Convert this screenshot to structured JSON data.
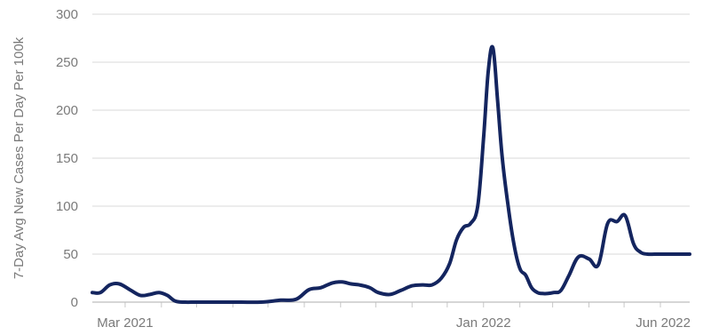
{
  "chart_data": {
    "type": "line",
    "ylabel": "7-Day Avg New Cases Per Day Per 100k",
    "ylim": [
      0,
      300
    ],
    "yticks": [
      0,
      50,
      100,
      150,
      200,
      250,
      300
    ],
    "grid": true,
    "x_tick_labels": [
      {
        "label": "Mar 2021",
        "date": "2021-03-01"
      },
      {
        "label": "Jan 2022",
        "date": "2022-01-01"
      },
      {
        "label": "Jun 2022",
        "date": "2022-06-01"
      }
    ],
    "series": [
      {
        "color": "#14255f",
        "x": [
          "2021-02-01",
          "2021-02-08",
          "2021-02-16",
          "2021-02-24",
          "2021-03-05",
          "2021-03-14",
          "2021-03-22",
          "2021-03-30",
          "2021-04-06",
          "2021-04-13",
          "2021-04-21",
          "2021-04-29",
          "2021-05-06",
          "2021-05-14",
          "2021-05-25",
          "2021-06-08",
          "2021-06-25",
          "2021-07-12",
          "2021-07-25",
          "2021-08-05",
          "2021-08-15",
          "2021-08-25",
          "2021-09-02",
          "2021-09-10",
          "2021-09-17",
          "2021-09-26",
          "2021-10-03",
          "2021-10-13",
          "2021-10-22",
          "2021-11-01",
          "2021-11-10",
          "2021-11-18",
          "2021-11-26",
          "2021-12-03",
          "2021-12-09",
          "2021-12-15",
          "2021-12-21",
          "2021-12-27",
          "2022-01-01",
          "2022-01-05",
          "2022-01-09",
          "2022-01-13",
          "2022-01-17",
          "2022-01-22",
          "2022-01-27",
          "2022-02-01",
          "2022-02-06",
          "2022-02-11",
          "2022-02-16",
          "2022-02-20",
          "2022-02-25",
          "2022-03-02",
          "2022-03-08",
          "2022-03-15",
          "2022-03-23",
          "2022-04-01",
          "2022-04-09",
          "2022-04-17",
          "2022-04-25",
          "2022-05-02",
          "2022-05-09",
          "2022-05-15",
          "2022-05-21",
          "2022-05-27",
          "2022-06-02",
          "2022-06-08",
          "2022-06-14",
          "2022-06-20",
          "2022-06-26"
        ],
        "values": [
          10,
          10,
          18,
          19,
          13,
          7,
          8,
          10,
          7,
          1,
          0,
          0,
          0,
          0,
          0,
          0,
          0,
          2,
          3,
          13,
          15,
          20,
          21,
          19,
          18,
          15,
          10,
          8,
          12,
          17,
          18,
          18,
          25,
          40,
          65,
          78,
          82,
          100,
          170,
          240,
          265,
          210,
          150,
          100,
          60,
          35,
          28,
          15,
          10,
          9,
          9,
          10,
          12,
          28,
          47,
          45,
          39,
          82,
          84,
          90,
          61,
          52,
          50,
          50,
          50,
          50,
          50,
          50,
          50
        ]
      }
    ]
  }
}
